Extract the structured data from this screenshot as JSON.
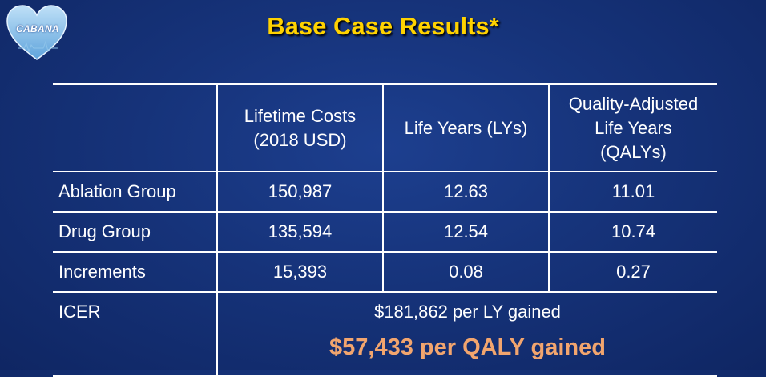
{
  "logo": {
    "text": "CABANA",
    "icon": "heart-icon"
  },
  "title": "Base Case Results*",
  "table": {
    "headers": [
      "",
      [
        "Lifetime Costs",
        "(2018 USD)"
      ],
      [
        "Life Years (LYs)"
      ],
      [
        "Quality-Adjusted",
        "Life Years",
        "(QALYs)"
      ]
    ],
    "rows": [
      {
        "label": "Ablation Group",
        "values": [
          "150,987",
          "12.63",
          "11.01"
        ]
      },
      {
        "label": "Drug Group",
        "values": [
          "135,594",
          "12.54",
          "10.74"
        ]
      },
      {
        "label": "Increments",
        "values": [
          "15,393",
          "0.08",
          "0.27"
        ]
      }
    ],
    "icer": {
      "label": "ICER",
      "per_ly": "$181,862 per LY gained",
      "per_qaly": "$57,433 per QALY gained"
    }
  },
  "colors": {
    "background": "#16337a",
    "title": "#ffd200",
    "highlight": "#f2a56e",
    "text": "#ffffff"
  }
}
